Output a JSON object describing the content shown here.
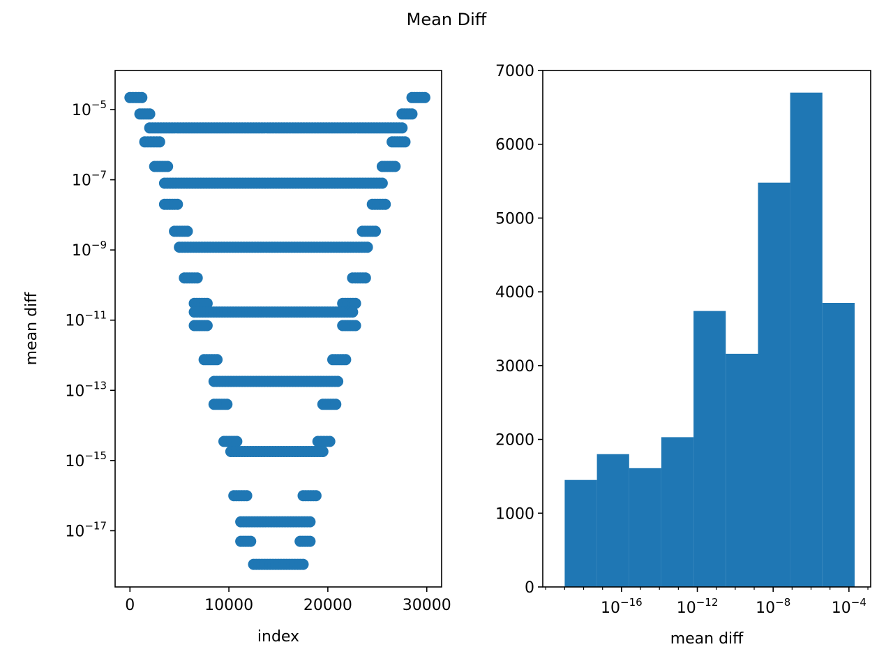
{
  "title": "Mean Diff",
  "colors": {
    "marker": "#1f77b4",
    "bar": "#1f77b4",
    "axis": "#000000"
  },
  "chart_data": [
    {
      "type": "scatter",
      "xlabel": "index",
      "ylabel": "mean diff",
      "xlim": [
        -1500,
        31500
      ],
      "ylim": [
        2.5e-19,
        0.00013
      ],
      "yscale": "log",
      "xticks": [
        0,
        10000,
        20000,
        30000
      ],
      "xtick_labels": [
        "0",
        "10000",
        "20000",
        "30000"
      ],
      "yticks": [
        1e-05,
        1e-07,
        1e-09,
        1e-11,
        1e-13,
        1e-15,
        1e-17
      ],
      "ytick_labels": [
        {
          "base": "10",
          "exp": "−5"
        },
        {
          "base": "10",
          "exp": "−7"
        },
        {
          "base": "10",
          "exp": "−9"
        },
        {
          "base": "10",
          "exp": "−11"
        },
        {
          "base": "10",
          "exp": "−13"
        },
        {
          "base": "10",
          "exp": "−15"
        },
        {
          "base": "10",
          "exp": "−17"
        }
      ],
      "grid": false,
      "series": [
        {
          "segments": [
            {
              "x0": 0,
              "x1": 1200,
              "y": 2.2e-05
            },
            {
              "x0": 28500,
              "x1": 29800,
              "y": 2.2e-05
            },
            {
              "x0": 1000,
              "x1": 2000,
              "y": 7.5e-06
            },
            {
              "x0": 27500,
              "x1": 28500,
              "y": 7.5e-06
            },
            {
              "x0": 2000,
              "x1": 27500,
              "y": 3e-06
            },
            {
              "x0": 1500,
              "x1": 3000,
              "y": 1.2e-06
            },
            {
              "x0": 26500,
              "x1": 27800,
              "y": 1.2e-06
            },
            {
              "x0": 2500,
              "x1": 3800,
              "y": 2.4e-07
            },
            {
              "x0": 25500,
              "x1": 26800,
              "y": 2.4e-07
            },
            {
              "x0": 3500,
              "x1": 25500,
              "y": 8e-08
            },
            {
              "x0": 3500,
              "x1": 4800,
              "y": 2e-08
            },
            {
              "x0": 24500,
              "x1": 25800,
              "y": 2e-08
            },
            {
              "x0": 4500,
              "x1": 5800,
              "y": 3.4e-09
            },
            {
              "x0": 23500,
              "x1": 24800,
              "y": 3.4e-09
            },
            {
              "x0": 5000,
              "x1": 24000,
              "y": 1.2e-09
            },
            {
              "x0": 5500,
              "x1": 6800,
              "y": 1.6e-10
            },
            {
              "x0": 22500,
              "x1": 23800,
              "y": 1.6e-10
            },
            {
              "x0": 6500,
              "x1": 7800,
              "y": 3e-11
            },
            {
              "x0": 21500,
              "x1": 22800,
              "y": 3e-11
            },
            {
              "x0": 6500,
              "x1": 22500,
              "y": 1.7e-11
            },
            {
              "x0": 6500,
              "x1": 7800,
              "y": 7e-12
            },
            {
              "x0": 21500,
              "x1": 22800,
              "y": 7e-12
            },
            {
              "x0": 7500,
              "x1": 8800,
              "y": 7.5e-13
            },
            {
              "x0": 20500,
              "x1": 21800,
              "y": 7.5e-13
            },
            {
              "x0": 8500,
              "x1": 21000,
              "y": 1.8e-13
            },
            {
              "x0": 8500,
              "x1": 9800,
              "y": 4e-14
            },
            {
              "x0": 19500,
              "x1": 20800,
              "y": 4e-14
            },
            {
              "x0": 9500,
              "x1": 10800,
              "y": 3.5e-15
            },
            {
              "x0": 19000,
              "x1": 20200,
              "y": 3.5e-15
            },
            {
              "x0": 10200,
              "x1": 19500,
              "y": 1.8e-15
            },
            {
              "x0": 10500,
              "x1": 11800,
              "y": 1e-16
            },
            {
              "x0": 17500,
              "x1": 18800,
              "y": 1e-16
            },
            {
              "x0": 11200,
              "x1": 18200,
              "y": 1.8e-17
            },
            {
              "x0": 11200,
              "x1": 12200,
              "y": 5e-18
            },
            {
              "x0": 17200,
              "x1": 18200,
              "y": 5e-18
            },
            {
              "x0": 12500,
              "x1": 17500,
              "y": 1.1e-18
            }
          ]
        }
      ]
    },
    {
      "type": "bar",
      "xlabel": "mean diff",
      "ylabel": "",
      "xscale": "log",
      "xlim": [
        7e-21,
        0.0014
      ],
      "ylim": [
        0,
        7000
      ],
      "yticks": [
        0,
        1000,
        2000,
        3000,
        4000,
        5000,
        6000,
        7000
      ],
      "ytick_labels": [
        "0",
        "1000",
        "2000",
        "3000",
        "4000",
        "5000",
        "6000",
        "7000"
      ],
      "xticks": [
        1e-16,
        1e-12,
        1e-08,
        0.0001
      ],
      "xtick_labels": [
        {
          "base": "10",
          "exp": "−16"
        },
        {
          "base": "10",
          "exp": "−12"
        },
        {
          "base": "10",
          "exp": "−8"
        },
        {
          "base": "10",
          "exp": "−4"
        }
      ],
      "grid": false,
      "bin_edges_log10": [
        -19.0,
        -17.3,
        -15.6,
        -13.9,
        -12.2,
        -10.5,
        -8.8,
        -7.1,
        -5.4,
        -3.7
      ],
      "values": [
        1450,
        1800,
        1610,
        2030,
        3740,
        3160,
        5480,
        6700,
        3850
      ]
    }
  ]
}
